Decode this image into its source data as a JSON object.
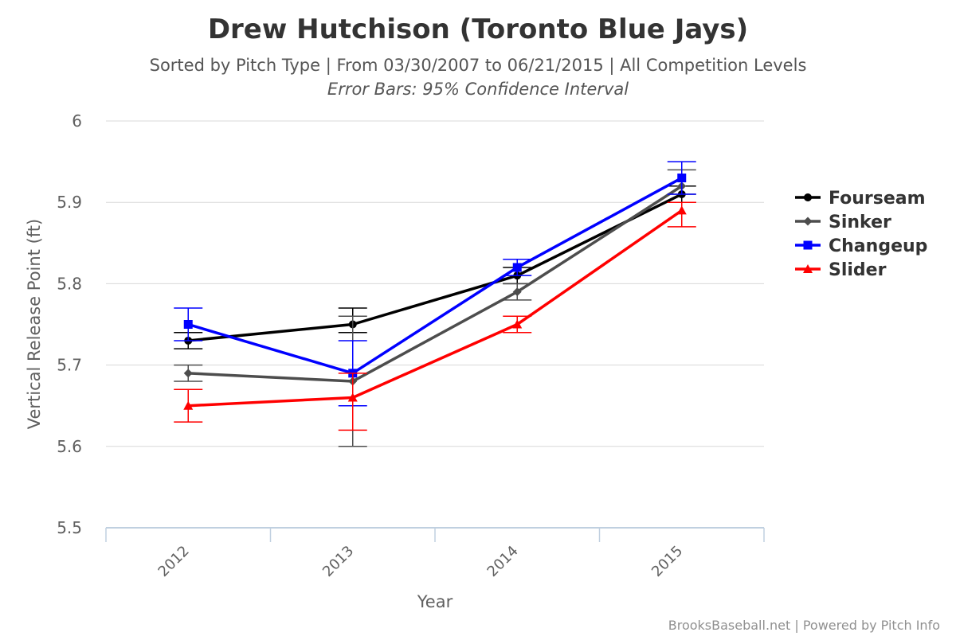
{
  "chart_data": {
    "type": "line",
    "title": "Drew Hutchison (Toronto Blue Jays)",
    "subtitle": "Sorted by Pitch Type | From 03/30/2007 to 06/21/2015 | All Competition Levels",
    "subtitle2": "Error Bars: 95% Confidence Interval",
    "xlabel": "Year",
    "ylabel": "Vertical Release Point (ft)",
    "categories": [
      "2012",
      "2013",
      "2014",
      "2015"
    ],
    "ylim": [
      5.5,
      6.0
    ],
    "yticks": [
      "5.5",
      "5.6",
      "5.7",
      "5.8",
      "5.9",
      "6"
    ],
    "grid": true,
    "legend_position": "right",
    "series": [
      {
        "name": "Fourseam",
        "color": "#000000",
        "marker": "circle",
        "values": [
          5.73,
          5.75,
          5.81,
          5.91
        ],
        "error_low": [
          5.72,
          5.74,
          5.8,
          5.9
        ],
        "error_high": [
          5.74,
          5.77,
          5.82,
          5.92
        ]
      },
      {
        "name": "Sinker",
        "color": "#4d4d4d",
        "marker": "diamond",
        "values": [
          5.69,
          5.68,
          5.79,
          5.92
        ],
        "error_low": [
          5.68,
          5.6,
          5.78,
          5.91
        ],
        "error_high": [
          5.7,
          5.76,
          5.8,
          5.94
        ]
      },
      {
        "name": "Changeup",
        "color": "#0000ff",
        "marker": "square",
        "values": [
          5.75,
          5.69,
          5.82,
          5.93
        ],
        "error_low": [
          5.73,
          5.65,
          5.81,
          5.91
        ],
        "error_high": [
          5.77,
          5.73,
          5.83,
          5.95
        ]
      },
      {
        "name": "Slider",
        "color": "#ff0000",
        "marker": "triangle",
        "values": [
          5.65,
          5.66,
          5.75,
          5.89
        ],
        "error_low": [
          5.63,
          5.62,
          5.74,
          5.87
        ],
        "error_high": [
          5.67,
          5.69,
          5.76,
          5.9
        ]
      }
    ]
  },
  "credit": "BrooksBaseball.net | Powered by Pitch Info"
}
